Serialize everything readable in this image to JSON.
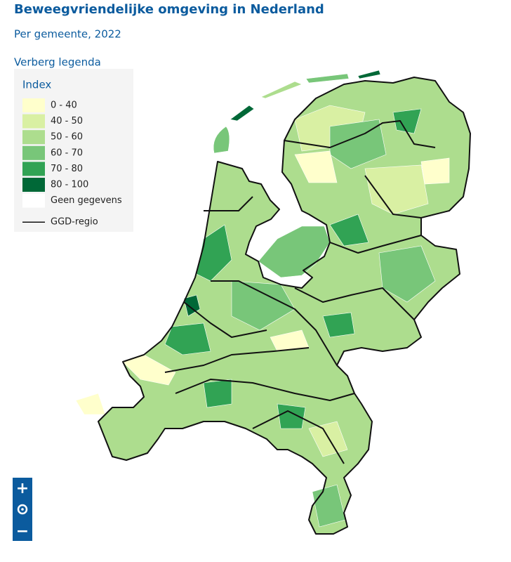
{
  "header": {
    "title": "Beweegvriendelijke omgeving in Nederland",
    "subtitle": "Per gemeente, 2022"
  },
  "legend_toggle": "Verberg legenda",
  "legend": {
    "title": "Index",
    "items": [
      {
        "label": "0 - 40",
        "color": "#ffffcc"
      },
      {
        "label": "40 - 50",
        "color": "#d9f0a3"
      },
      {
        "label": "50 - 60",
        "color": "#addd8e"
      },
      {
        "label": "60 - 70",
        "color": "#78c679"
      },
      {
        "label": "70 - 80",
        "color": "#31a354"
      },
      {
        "label": "80 - 100",
        "color": "#006837"
      },
      {
        "label": "Geen gegevens",
        "color": "#ffffff"
      }
    ],
    "boundary_label": "GGD-regio"
  },
  "zoom": {
    "in": "+",
    "out": "−"
  }
}
